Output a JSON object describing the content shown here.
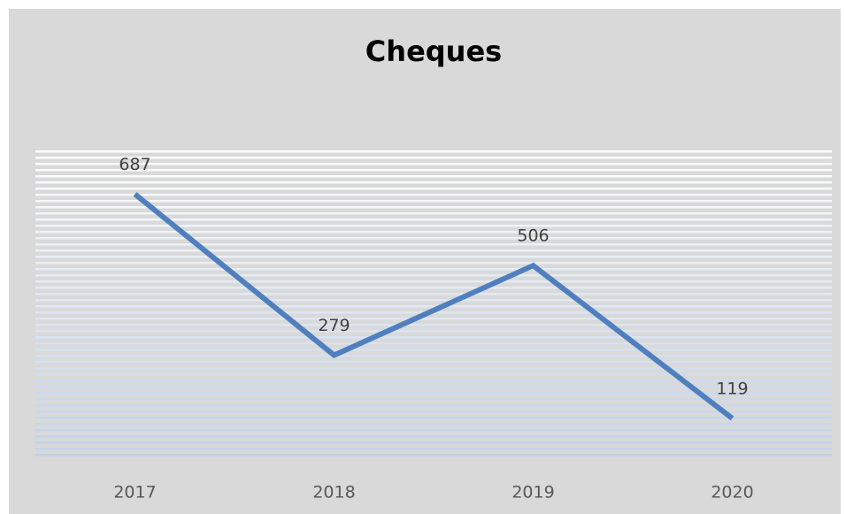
{
  "chart_data": {
    "type": "line",
    "title": "Cheques",
    "categories": [
      "2017",
      "2018",
      "2019",
      "2020"
    ],
    "series": [
      {
        "name": "Cheques",
        "color": "#4f7fbf",
        "values": [
          687,
          279,
          506,
          119
        ]
      }
    ],
    "ylim": [
      0,
      800
    ],
    "data_labels": true
  }
}
